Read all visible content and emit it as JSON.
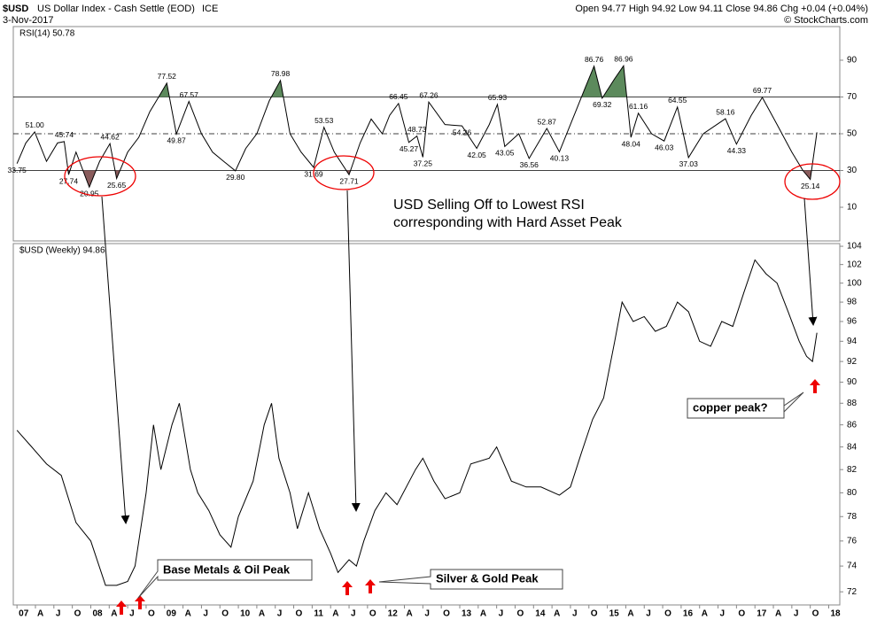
{
  "header": {
    "symbol": "$USD",
    "name": "US Dollar Index - Cash Settle (EOD)",
    "exchange": "ICE",
    "date": "3-Nov-2017",
    "quote": "Open 94.77  High 94.92  Low 94.11  Close 94.86  Chg +0.04 (+0.04%)",
    "credit": "© StockCharts.com"
  },
  "annotations": {
    "headline": [
      "USD Selling Off to Lowest RSI",
      "corresponding with Hard Asset Peak"
    ],
    "callouts": [
      "Base Metals & Oil Peak",
      "Silver & Gold Peak",
      "copper peak?"
    ]
  },
  "chart_data": [
    {
      "type": "line",
      "x": [
        2007.0,
        2007.12,
        2007.24,
        2007.4,
        2007.55,
        2007.64,
        2007.7,
        2007.8,
        2007.98,
        2008.12,
        2008.26,
        2008.35,
        2008.5,
        2008.65,
        2008.8,
        2008.92,
        2009.03,
        2009.16,
        2009.33,
        2009.5,
        2009.65,
        2009.8,
        2009.96,
        2010.1,
        2010.25,
        2010.42,
        2010.57,
        2010.7,
        2010.85,
        2011.02,
        2011.16,
        2011.3,
        2011.5,
        2011.65,
        2011.8,
        2011.95,
        2012.05,
        2012.17,
        2012.31,
        2012.42,
        2012.5,
        2012.58,
        2012.8,
        2013.03,
        2013.23,
        2013.4,
        2013.51,
        2013.61,
        2013.8,
        2013.94,
        2014.18,
        2014.35,
        2014.55,
        2014.7,
        2014.82,
        2014.93,
        2015.1,
        2015.22,
        2015.32,
        2015.42,
        2015.6,
        2015.77,
        2015.95,
        2016.1,
        2016.3,
        2016.6,
        2016.75,
        2016.95,
        2017.1,
        2017.3,
        2017.5,
        2017.65,
        2017.75,
        2017.84
      ],
      "series": [
        {
          "name": "RSI(14) 50.78",
          "color": "#000000",
          "values": [
            33.75,
            45,
            51,
            35,
            45,
            45.74,
            27.74,
            40,
            20.95,
            35,
            44.62,
            25.65,
            40,
            48,
            62,
            70,
            77.52,
            49.87,
            67.57,
            50,
            40,
            35,
            29.8,
            42,
            50,
            68,
            78.98,
            50,
            40,
            31.69,
            53.53,
            40,
            27.71,
            45,
            58,
            50,
            60,
            66.45,
            45.27,
            48.73,
            37.25,
            67.26,
            55,
            54.26,
            42.05,
            55,
            65.93,
            43.05,
            50,
            36.56,
            52.87,
            40.13,
            60,
            75,
            86.76,
            69.32,
            80,
            86.96,
            48.04,
            61.16,
            50,
            46.03,
            64.55,
            37.03,
            50,
            58.16,
            44.33,
            60,
            69.77,
            55,
            40,
            30,
            25.14,
            50.78
          ],
          "value_labels": [
            "33.75",
            null,
            "51.00",
            null,
            null,
            "45.74",
            "27.74",
            null,
            "20.95",
            null,
            "44.62",
            "25.65",
            null,
            null,
            null,
            null,
            "77.52",
            "49.87",
            "67.57",
            null,
            null,
            null,
            "29.80",
            null,
            null,
            null,
            "78.98",
            null,
            null,
            "31.69",
            "53.53",
            null,
            "27.71",
            null,
            null,
            null,
            null,
            "66.45",
            "45.27",
            "48.73",
            "37.25",
            "67.26",
            null,
            "54.26",
            "42.05",
            null,
            "65.93",
            "43.05",
            null,
            "36.56",
            "52.87",
            "40.13",
            null,
            null,
            "86.76",
            "69.32",
            null,
            "86.96",
            "48.04",
            "61.16",
            null,
            "46.03",
            "64.55",
            "37.03",
            null,
            "58.16",
            "44.33",
            null,
            "69.77",
            null,
            null,
            null,
            "25.14",
            null
          ]
        }
      ],
      "xlim": [
        2006.95,
        2018.15
      ],
      "ylim": [
        -8.3,
        108.3
      ],
      "yticks": [
        10,
        30,
        50,
        70,
        90
      ],
      "overbought": 70,
      "oversold": 30,
      "midline": 50,
      "overbought_color": "#5c8a5c",
      "oversold_color": "#8a5c5c"
    },
    {
      "type": "line",
      "log_scale": true,
      "x": [
        2007.0,
        2007.2,
        2007.4,
        2007.6,
        2007.8,
        2008.0,
        2008.2,
        2008.35,
        2008.5,
        2008.6,
        2008.75,
        2008.85,
        2008.95,
        2009.1,
        2009.2,
        2009.35,
        2009.45,
        2009.6,
        2009.75,
        2009.9,
        2010.0,
        2010.2,
        2010.35,
        2010.45,
        2010.55,
        2010.7,
        2010.8,
        2010.95,
        2011.1,
        2011.25,
        2011.35,
        2011.5,
        2011.6,
        2011.7,
        2011.85,
        2012.0,
        2012.15,
        2012.4,
        2012.5,
        2012.65,
        2012.8,
        2013.0,
        2013.15,
        2013.4,
        2013.5,
        2013.7,
        2013.9,
        2014.1,
        2014.35,
        2014.5,
        2014.65,
        2014.8,
        2014.95,
        2015.1,
        2015.2,
        2015.35,
        2015.5,
        2015.65,
        2015.8,
        2015.95,
        2016.1,
        2016.25,
        2016.4,
        2016.55,
        2016.7,
        2016.85,
        2017.0,
        2017.15,
        2017.3,
        2017.45,
        2017.6,
        2017.7,
        2017.78,
        2017.84
      ],
      "series": [
        {
          "name": "$USD (Weekly) 94.86",
          "color": "#000000",
          "values": [
            85.5,
            84,
            82.5,
            81.5,
            77.5,
            76,
            72.5,
            72.5,
            72.8,
            74,
            80,
            86,
            82,
            86,
            88,
            82,
            80,
            78.5,
            76.5,
            75.5,
            78,
            81,
            86,
            88,
            83,
            80,
            77,
            80,
            77,
            75,
            73.5,
            74.5,
            74,
            76,
            78.5,
            80,
            79,
            82,
            83,
            81,
            79.5,
            80,
            82.5,
            83,
            84,
            81,
            80.5,
            80.5,
            79.8,
            80.5,
            83.5,
            86.5,
            88.5,
            94,
            98,
            96,
            96.5,
            95,
            95.5,
            98,
            97,
            94,
            93.5,
            96,
            95.5,
            99,
            102.5,
            101,
            100,
            97,
            94,
            92.5,
            92,
            94.86
          ]
        }
      ],
      "xlim": [
        2006.95,
        2018.15
      ],
      "ylim": [
        71,
        104.3
      ],
      "yticks": [
        72,
        74,
        76,
        78,
        80,
        82,
        84,
        86,
        88,
        90,
        92,
        94,
        96,
        98,
        100,
        102,
        104
      ],
      "xticks": [
        {
          "value": 2007,
          "label": "07"
        },
        {
          "value": 2007.25,
          "label": "A"
        },
        {
          "value": 2007.5,
          "label": "J"
        },
        {
          "value": 2007.75,
          "label": "O"
        },
        {
          "value": 2008,
          "label": "08"
        },
        {
          "value": 2008.25,
          "label": "A"
        },
        {
          "value": 2008.5,
          "label": "J"
        },
        {
          "value": 2008.75,
          "label": "O"
        },
        {
          "value": 2009,
          "label": "09"
        },
        {
          "value": 2009.25,
          "label": "A"
        },
        {
          "value": 2009.5,
          "label": "J"
        },
        {
          "value": 2009.75,
          "label": "O"
        },
        {
          "value": 2010,
          "label": "10"
        },
        {
          "value": 2010.25,
          "label": "A"
        },
        {
          "value": 2010.5,
          "label": "J"
        },
        {
          "value": 2010.75,
          "label": "O"
        },
        {
          "value": 2011,
          "label": "11"
        },
        {
          "value": 2011.25,
          "label": "A"
        },
        {
          "value": 2011.5,
          "label": "J"
        },
        {
          "value": 2011.75,
          "label": "O"
        },
        {
          "value": 2012,
          "label": "12"
        },
        {
          "value": 2012.25,
          "label": "A"
        },
        {
          "value": 2012.5,
          "label": "J"
        },
        {
          "value": 2012.75,
          "label": "O"
        },
        {
          "value": 2013,
          "label": "13"
        },
        {
          "value": 2013.25,
          "label": "A"
        },
        {
          "value": 2013.5,
          "label": "J"
        },
        {
          "value": 2013.75,
          "label": "O"
        },
        {
          "value": 2014,
          "label": "14"
        },
        {
          "value": 2014.25,
          "label": "A"
        },
        {
          "value": 2014.5,
          "label": "J"
        },
        {
          "value": 2014.75,
          "label": "O"
        },
        {
          "value": 2015,
          "label": "15"
        },
        {
          "value": 2015.25,
          "label": "A"
        },
        {
          "value": 2015.5,
          "label": "J"
        },
        {
          "value": 2015.75,
          "label": "O"
        },
        {
          "value": 2016,
          "label": "16"
        },
        {
          "value": 2016.25,
          "label": "A"
        },
        {
          "value": 2016.5,
          "label": "J"
        },
        {
          "value": 2016.75,
          "label": "O"
        },
        {
          "value": 2017,
          "label": "17"
        },
        {
          "value": 2017.25,
          "label": "A"
        },
        {
          "value": 2017.5,
          "label": "J"
        },
        {
          "value": 2017.75,
          "label": "O"
        },
        {
          "value": 2018,
          "label": "18"
        }
      ]
    }
  ]
}
